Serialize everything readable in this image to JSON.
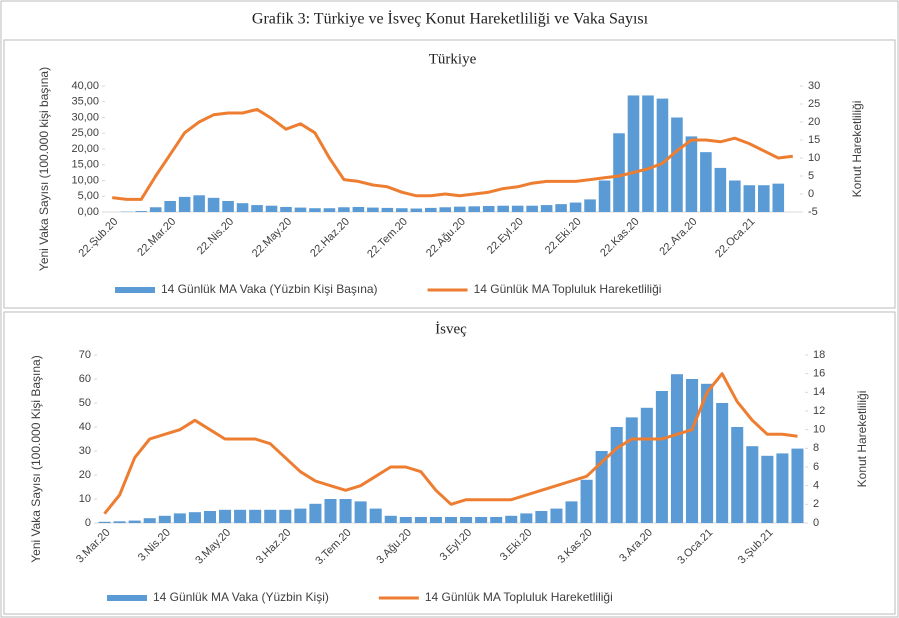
{
  "title": "Grafik 3: Türkiye ve İsveç Konut Hareketliliği  ve Vaka Sayısı",
  "chart_data": [
    {
      "type": "bar_line",
      "title": "Türkiye",
      "y_label": "Yeni Vaka Sayısı (100.000 kişi başına)",
      "y2_label": "Konut Hareketliliği",
      "categories": [
        "22.Şub.20",
        null,
        null,
        null,
        "22.Mar.20",
        null,
        null,
        null,
        "22.Nis.20",
        null,
        null,
        null,
        "22.May.20",
        null,
        null,
        null,
        "22.Haz.20",
        null,
        null,
        null,
        "22.Tem.20",
        null,
        null,
        null,
        "22.Ağu.20",
        null,
        null,
        null,
        "22.Eyl.20",
        null,
        null,
        null,
        "22.Eki.20",
        null,
        null,
        null,
        "22.Kas.20",
        null,
        null,
        null,
        "22.Ara.20",
        null,
        null,
        null,
        "22.Oca.21",
        null,
        null,
        null
      ],
      "series": [
        {
          "name": "14 Günlük MA Vaka (Yüzbin Kişi Başına)",
          "color": "#5b9bd5",
          "kind": "bar",
          "values": [
            0,
            0.1,
            0.3,
            1.5,
            3.5,
            4.8,
            5.3,
            4.5,
            3.5,
            2.8,
            2.2,
            2,
            1.6,
            1.4,
            1.2,
            1.2,
            1.5,
            1.6,
            1.4,
            1.3,
            1.2,
            1.1,
            1.3,
            1.5,
            1.7,
            1.8,
            1.9,
            2,
            2,
            2,
            2.2,
            2.5,
            3,
            4,
            10,
            25,
            37,
            37,
            36,
            30,
            24,
            19,
            14,
            10,
            8.5,
            8.5,
            9,
            null
          ]
        },
        {
          "name": "14 Günlük MA Topluluk Hareketliliği",
          "color": "#ed7d31",
          "kind": "line",
          "axis": "y2",
          "values": [
            -1,
            -1.5,
            -1.5,
            5,
            11,
            17,
            20,
            22,
            22.5,
            22.5,
            23.5,
            21,
            18,
            19.5,
            17,
            10,
            4,
            3.5,
            2.5,
            2,
            0.5,
            -0.5,
            -0.5,
            0,
            -0.5,
            0,
            0.5,
            1.5,
            2,
            3,
            3.5,
            3.5,
            3.5,
            4,
            4.5,
            5,
            6,
            7,
            8.5,
            12,
            15,
            15,
            14.5,
            15.5,
            14,
            12,
            10,
            10.5
          ]
        }
      ],
      "ylim": [
        0,
        40
      ],
      "yticks": [
        {
          "value": 0,
          "label": "0,00"
        },
        {
          "value": 5,
          "label": "5,00"
        },
        {
          "value": 10,
          "label": "10,00"
        },
        {
          "value": 15,
          "label": "15,00"
        },
        {
          "value": 20,
          "label": "20,00"
        },
        {
          "value": 25,
          "label": "25,00"
        },
        {
          "value": 30,
          "label": "30,00"
        },
        {
          "value": 35,
          "label": "35,00"
        },
        {
          "value": 40,
          "label": "40,00"
        }
      ],
      "y2lim": [
        -5,
        30
      ],
      "y2ticks": [
        -5,
        0,
        5,
        10,
        15,
        20,
        25,
        30
      ],
      "legend": "bottom"
    },
    {
      "type": "bar_line",
      "title": "İsveç",
      "y_label": "Yeni Vaka Sayısı (100.000 Kişi Başına)",
      "y2_label": "Konut Hareketliliği",
      "categories": [
        "3.Mar.20",
        null,
        null,
        null,
        "3.Nis.20",
        null,
        null,
        null,
        "3.May.20",
        null,
        null,
        null,
        "3.Haz.20",
        null,
        null,
        null,
        "3.Tem.20",
        null,
        null,
        null,
        "3.Ağu.20",
        null,
        null,
        null,
        "3.Eyl.20",
        null,
        null,
        null,
        "3.Eki.20",
        null,
        null,
        null,
        "3.Kas.20",
        null,
        null,
        null,
        "3.Ara.20",
        null,
        null,
        null,
        "3.Oca.21",
        null,
        null,
        null,
        "3.Şub.21",
        null,
        null
      ],
      "series": [
        {
          "name": "14 Günlük MA Vaka (Yüzbin Kişi)",
          "color": "#5b9bd5",
          "kind": "bar",
          "values": [
            0.5,
            0.7,
            1,
            2,
            3,
            4,
            4.5,
            5,
            5.5,
            5.5,
            5.5,
            5.5,
            5.5,
            6,
            8,
            10,
            10,
            9,
            6,
            3,
            2.5,
            2.5,
            2.5,
            2.5,
            2.5,
            2.5,
            2.5,
            3,
            4,
            5,
            6,
            9,
            18,
            30,
            40,
            44,
            48,
            55,
            62,
            60,
            58,
            50,
            40,
            32,
            28,
            29,
            31
          ]
        },
        {
          "name": "14 Günlük MA Topluluk Hareketliliği",
          "color": "#ed7d31",
          "kind": "line",
          "axis": "y2",
          "values": [
            1,
            3,
            7,
            9,
            9.5,
            10,
            11,
            10,
            9,
            9,
            9,
            8.5,
            7,
            5.5,
            4.5,
            4,
            3.5,
            4,
            5,
            6,
            6,
            5.5,
            3.5,
            2,
            2.5,
            2.5,
            2.5,
            2.5,
            3,
            3.5,
            4,
            4.5,
            5,
            6.5,
            8,
            9,
            9,
            9,
            9.5,
            10,
            14,
            16,
            13,
            11,
            9.5,
            9.5,
            9.3
          ]
        }
      ],
      "ylim": [
        0,
        70
      ],
      "yticks": [
        0,
        10,
        20,
        30,
        40,
        50,
        60,
        70
      ],
      "y2lim": [
        0,
        18
      ],
      "y2ticks": [
        0,
        2,
        4,
        6,
        8,
        10,
        12,
        14,
        16,
        18
      ],
      "legend": "bottom"
    }
  ]
}
